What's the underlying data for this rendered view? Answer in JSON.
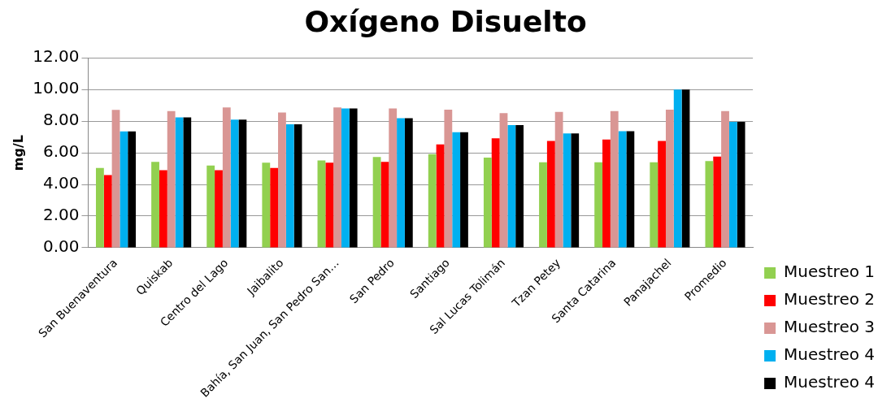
{
  "chart_data": {
    "type": "bar",
    "title": "Oxígeno Disuelto",
    "ylabel": "mg/L",
    "categories": [
      "San Buenaventura",
      "Quiskab",
      "Centro del Lago",
      "Jaibalito",
      "Bahía, San Juan, San Pedro San…",
      "San Pedro",
      "Santiago",
      "Sal Lucas Tolimán",
      "Tzan Petey",
      "Santa Catarina",
      "Panajachel",
      "Promedio"
    ],
    "series": [
      {
        "name": "Muestreo 1",
        "color": "#92d050",
        "values": [
          5.04,
          5.43,
          5.2,
          5.37,
          5.51,
          5.73,
          5.92,
          5.7,
          5.4,
          5.4,
          5.4,
          5.48
        ]
      },
      {
        "name": "Muestreo 2",
        "color": "#ff0000",
        "values": [
          4.59,
          4.9,
          4.9,
          5.04,
          5.37,
          5.43,
          6.53,
          6.92,
          6.75,
          6.84,
          6.75,
          5.76
        ]
      },
      {
        "name": "Muestreo 3",
        "color": "#d99694",
        "values": [
          8.71,
          8.63,
          8.86,
          8.55,
          8.86,
          8.8,
          8.72,
          8.5,
          8.58,
          8.64,
          8.72,
          8.64
        ]
      },
      {
        "name": "Muestreo 4",
        "color": "#00b0f0",
        "values": [
          7.35,
          8.24,
          8.1,
          7.8,
          8.8,
          8.18,
          7.3,
          7.75,
          7.22,
          7.36,
          10.0,
          7.95
        ]
      },
      {
        "name": "Muestreo 4",
        "color": "#000000",
        "values": [
          7.35,
          8.24,
          8.1,
          7.8,
          8.8,
          8.18,
          7.3,
          7.75,
          7.22,
          7.36,
          10.0,
          7.95
        ]
      }
    ],
    "ylim": [
      0,
      12
    ],
    "yticks": [
      {
        "value": 0,
        "label": "0.00"
      },
      {
        "value": 2,
        "label": "2.00"
      },
      {
        "value": 4,
        "label": "4.00"
      },
      {
        "value": 6,
        "label": "6.00"
      },
      {
        "value": 8,
        "label": "8.00"
      },
      {
        "value": 10,
        "label": "10.00"
      },
      {
        "value": 12,
        "label": "12.00"
      }
    ],
    "grid": "y",
    "legend": "right"
  }
}
